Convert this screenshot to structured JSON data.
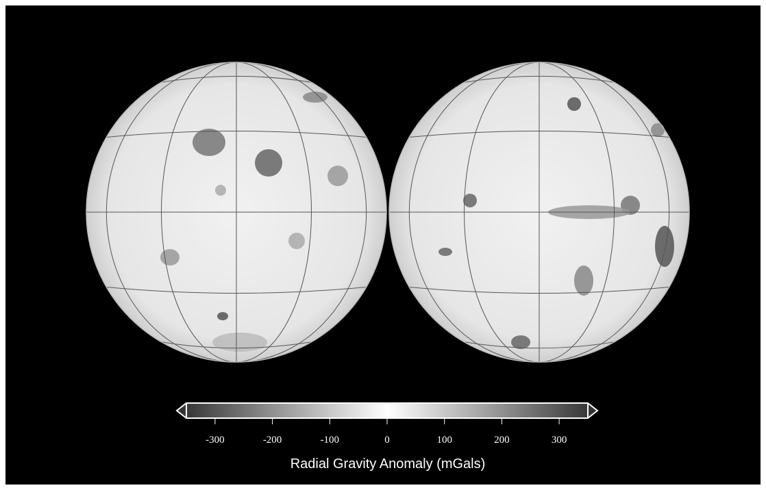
{
  "colorbar": {
    "label": "Radial Gravity Anomaly (mGals)",
    "lim": [
      -350,
      350
    ],
    "ticks": [
      -300,
      -200,
      -100,
      0,
      100,
      200,
      300
    ]
  }
}
